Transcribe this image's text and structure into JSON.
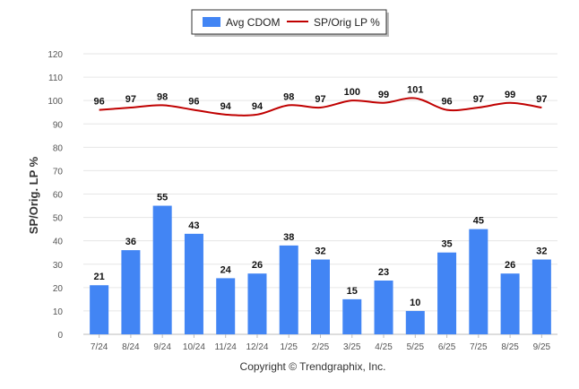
{
  "chart_data": {
    "type": "bar",
    "title": "",
    "xlabel": "",
    "ylabel": "SP/Orig. LP %",
    "ylim": [
      0,
      120
    ],
    "yticks": [
      0,
      10,
      20,
      30,
      40,
      50,
      60,
      70,
      80,
      90,
      100,
      110,
      120
    ],
    "grid": true,
    "legend_position": "top-center",
    "categories": [
      "7/24",
      "8/24",
      "9/24",
      "10/24",
      "11/24",
      "12/24",
      "1/25",
      "2/25",
      "3/25",
      "4/25",
      "5/25",
      "6/25",
      "7/25",
      "8/25",
      "9/25"
    ],
    "series": [
      {
        "name": "Avg CDOM",
        "type": "bar",
        "color": "#4285f4",
        "values": [
          21,
          36,
          55,
          43,
          24,
          26,
          38,
          32,
          15,
          23,
          10,
          35,
          45,
          26,
          32
        ]
      },
      {
        "name": "SP/Orig LP %",
        "type": "line",
        "color": "#c00000",
        "values": [
          96,
          97,
          98,
          96,
          94,
          94,
          98,
          97,
          100,
          99,
          101,
          96,
          97,
          99,
          97
        ]
      }
    ],
    "footer": "Copyright © Trendgraphix, Inc."
  }
}
